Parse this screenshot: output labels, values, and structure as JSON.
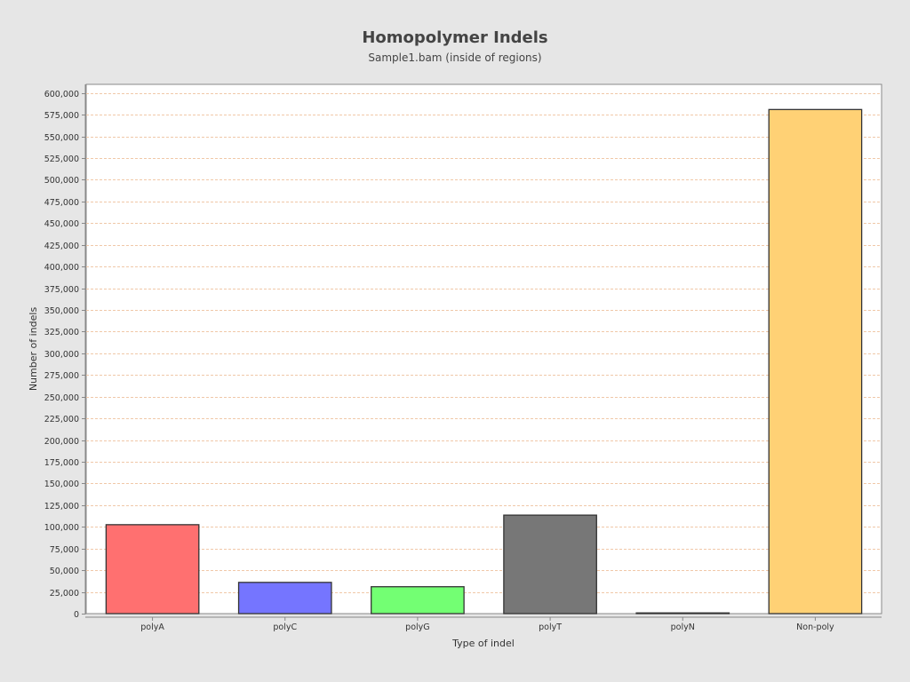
{
  "chart_data": {
    "type": "bar",
    "title": "Homopolymer Indels",
    "subtitle": "Sample1.bam (inside of regions)",
    "xlabel": "Type of indel",
    "ylabel": "Number of indels",
    "categories": [
      "polyA",
      "polyC",
      "polyG",
      "polyT",
      "polyN",
      "Non-poly"
    ],
    "values": [
      102500,
      36000,
      31000,
      113500,
      200,
      581000
    ],
    "colors": [
      "#ff7070",
      "#7575ff",
      "#73ff73",
      "#777777",
      "#ffffff",
      "#ffd175"
    ],
    "ylim": [
      0,
      610000
    ],
    "yticks": [
      0,
      25000,
      50000,
      75000,
      100000,
      125000,
      150000,
      175000,
      200000,
      225000,
      250000,
      275000,
      300000,
      325000,
      350000,
      375000,
      400000,
      425000,
      450000,
      475000,
      500000,
      525000,
      550000,
      575000,
      600000
    ],
    "ytick_labels": [
      "0",
      "25,000",
      "50,000",
      "75,000",
      "100,000",
      "125,000",
      "150,000",
      "175,000",
      "200,000",
      "225,000",
      "250,000",
      "275,000",
      "300,000",
      "325,000",
      "350,000",
      "375,000",
      "400,000",
      "425,000",
      "450,000",
      "475,000",
      "500,000",
      "525,000",
      "550,000",
      "575,000",
      "600,000"
    ],
    "grid": true,
    "legend": "none"
  }
}
